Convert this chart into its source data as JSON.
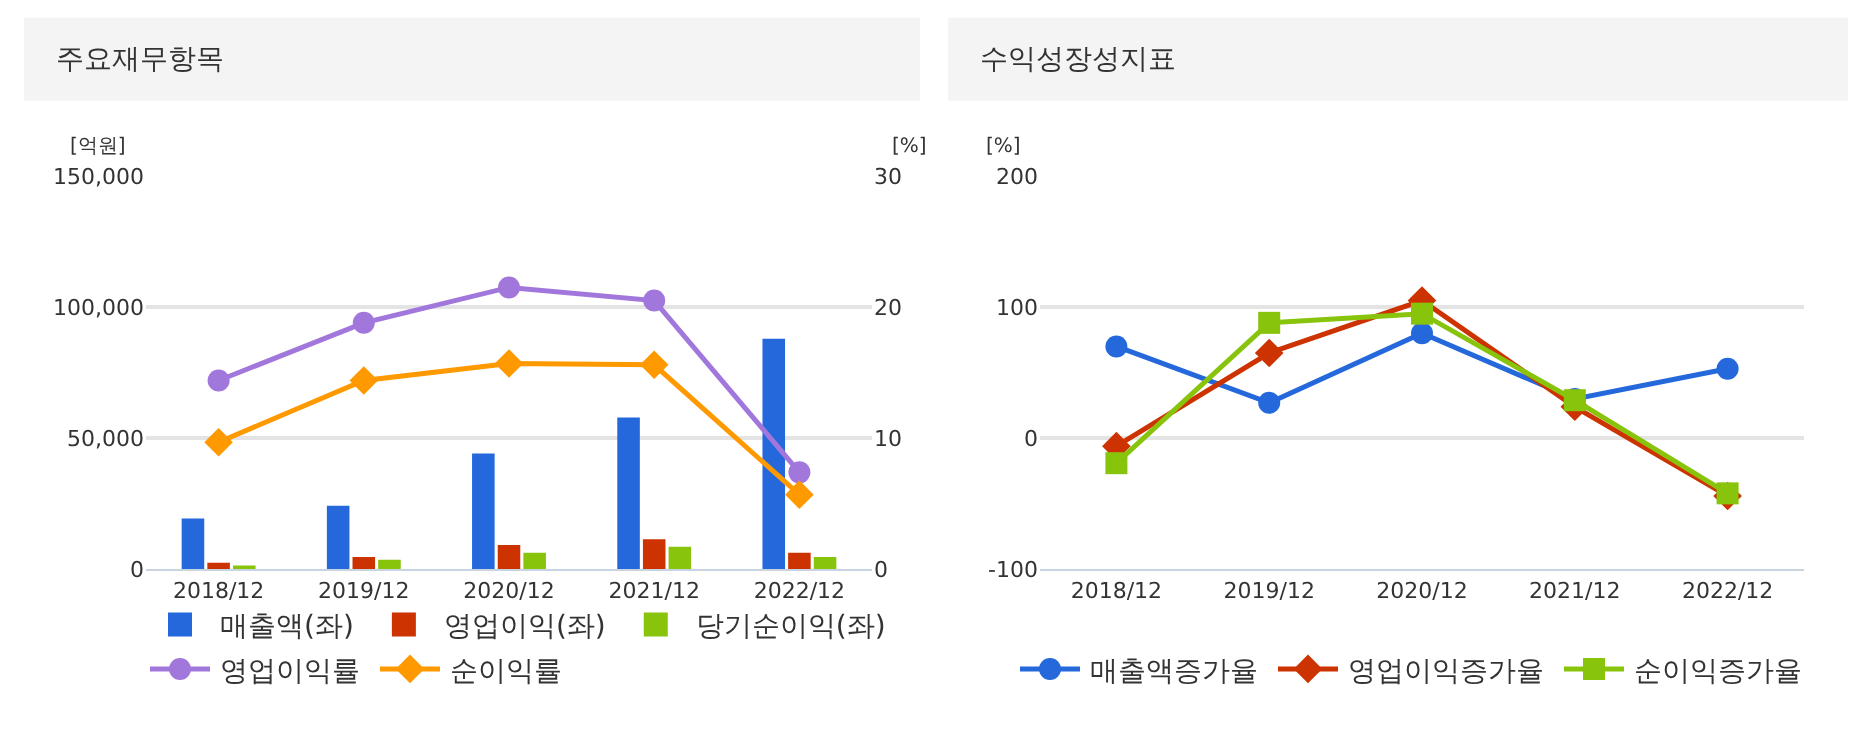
{
  "chart_data": [
    {
      "type": "bar",
      "title": "주요재무항목",
      "ylabel": "[억원]",
      "y2label": "[%]",
      "categories": [
        "2018/12",
        "2019/12",
        "2020/12",
        "2021/12",
        "2022/12"
      ],
      "series": [
        {
          "name": "매출액(좌)",
          "color": "#2468dc",
          "values": [
            19400,
            24300,
            44200,
            57900,
            87900
          ]
        },
        {
          "name": "영업이익(좌)",
          "color": "#cc3300",
          "values": [
            2500,
            4700,
            9300,
            11500,
            6400
          ]
        },
        {
          "name": "당기순이익(좌)",
          "color": "#88c40c",
          "values": [
            1500,
            3700,
            6400,
            8600,
            4700
          ]
        },
        {
          "name": "영업이익률",
          "type": "line",
          "axis": "y2",
          "marker": "circle",
          "color": "#a277dc",
          "values": [
            14.4,
            18.8,
            21.5,
            20.5,
            7.4
          ]
        },
        {
          "name": "순이익률",
          "type": "line",
          "axis": "y2",
          "marker": "diamond",
          "color": "#ff9900",
          "values": [
            9.7,
            14.4,
            15.7,
            15.6,
            5.7
          ]
        }
      ],
      "ylim": [
        0,
        150000
      ],
      "yticks": [
        0,
        {
          "value": 50000,
          "label": "50,000"
        },
        {
          "value": 100000,
          "label": "100,000"
        },
        {
          "value": 150000,
          "label": "150,000"
        }
      ],
      "y2lim": [
        0,
        30
      ],
      "y2ticks": [
        0,
        10,
        20,
        30
      ],
      "grid": "y",
      "legend": "bottom"
    },
    {
      "type": "line",
      "title": "수익성장성지표",
      "ylabel": "[%]",
      "categories": [
        "2018/12",
        "2019/12",
        "2020/12",
        "2021/12",
        "2022/12"
      ],
      "series": [
        {
          "name": "매출액증가율",
          "marker": "circle",
          "color": "#2468dc",
          "values": [
            70,
            27,
            80,
            30,
            53
          ]
        },
        {
          "name": "영업이익증가율",
          "marker": "diamond",
          "color": "#cc3300",
          "values": [
            -6,
            65,
            105,
            24,
            -44
          ]
        },
        {
          "name": "순이익증가율",
          "marker": "square",
          "color": "#88c40c",
          "values": [
            -19,
            88,
            95,
            29,
            -42
          ]
        }
      ],
      "ylim": [
        -100,
        200
      ],
      "yticks": [
        -100,
        0,
        100,
        200
      ],
      "grid": "y",
      "legend": "bottom"
    }
  ]
}
